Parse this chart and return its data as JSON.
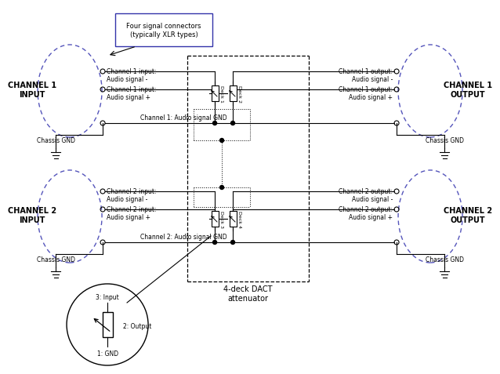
{
  "bg_color": "#ffffff",
  "line_color": "#000000",
  "dashed_blue": "#5555bb",
  "text_color": "#000000",
  "callout_text": "Four signal connectors\n(typically XLR types)",
  "label_ch1_input": "CHANNEL 1\nINPUT",
  "label_ch1_output": "CHANNEL 1\nOUTPUT",
  "label_ch2_input": "CHANNEL 2\nINPUT",
  "label_ch2_output": "CHANNEL 2\nOUTPUT",
  "dact_label": "4-deck DACT\nattenuator",
  "chassis_gnd": "Chassis GND",
  "ch1_sig_neg_in": "Channel 1 input:\nAudio signal -",
  "ch1_sig_pos_in": "Channel 1 input:\nAudio signal +",
  "ch1_gnd": "Channel 1: Audio signal GND",
  "ch1_sig_neg_out": "Channel 1 output:\nAudio signal -",
  "ch1_sig_pos_out": "Channel 1 output:\nAudio signal +",
  "ch2_sig_neg_in": "Channel 2 input:\nAudio signal -",
  "ch2_sig_pos_in": "Channel 2 input:\nAudio signal +",
  "ch2_gnd": "Channel 2: Audio signal GND",
  "ch2_sig_neg_out": "Channel 2 output:\nAudio signal -",
  "ch2_sig_pos_out": "Channel 2 output:\nAudio signal +",
  "deck1": "Deck 1",
  "deck2": "Deck 2",
  "deck3": "Deck 3",
  "deck4": "Deck 4",
  "pot_input": "3: Input",
  "pot_output": "2: Output",
  "pot_gnd": "1: GND"
}
